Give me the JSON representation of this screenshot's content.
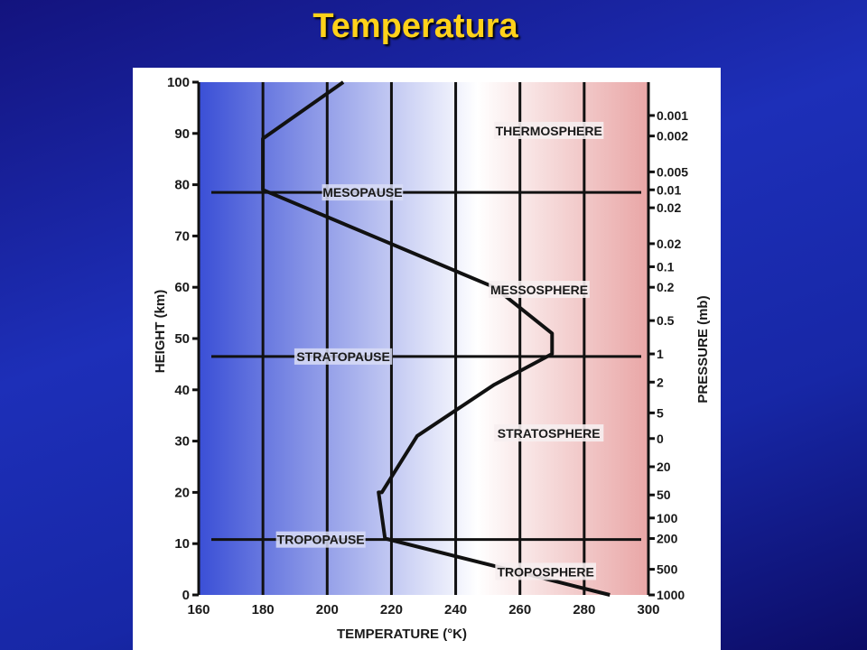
{
  "slide": {
    "title": "Temperatura"
  },
  "chart_data": {
    "type": "line",
    "xlabel": "TEMPERATURE (°K)",
    "ylabel": "HEIGHT (km)",
    "y2label": "PRESSURE (mb)",
    "xlim": [
      160,
      300
    ],
    "ylim": [
      0,
      100
    ],
    "x_ticks": [
      160,
      180,
      200,
      220,
      240,
      260,
      280,
      300
    ],
    "y_ticks": [
      0,
      10,
      20,
      30,
      40,
      50,
      60,
      70,
      80,
      90,
      100
    ],
    "grid": true,
    "series": [
      {
        "x": [
          288,
          218,
          216,
          217,
          228,
          252,
          270,
          270,
          252,
          180,
          180,
          205
        ],
        "y": [
          0,
          11,
          20,
          20,
          31,
          41,
          47,
          51,
          60,
          79,
          89,
          100
        ]
      }
    ],
    "pressure_ticks": [
      {
        "label": "0.001",
        "height": 93.5
      },
      {
        "label": "0.002",
        "height": 89.5
      },
      {
        "label": "0.005",
        "height": 82.5
      },
      {
        "label": "0.01",
        "height": 79
      },
      {
        "label": "0.02",
        "height": 75.5
      },
      {
        "label": "0.02",
        "height": 68.5
      },
      {
        "label": "0.1",
        "height": 64
      },
      {
        "label": "0.2",
        "height": 60
      },
      {
        "label": "0.5",
        "height": 53.5
      },
      {
        "label": "1",
        "height": 47
      },
      {
        "label": "2",
        "height": 41.5
      },
      {
        "label": "5",
        "height": 35.5
      },
      {
        "label": "0",
        "height": 30.5
      },
      {
        "label": "20",
        "height": 25
      },
      {
        "label": "50",
        "height": 19.5
      },
      {
        "label": "100",
        "height": 15
      },
      {
        "label": "200",
        "height": 11
      },
      {
        "label": "500",
        "height": 5
      },
      {
        "label": "1000",
        "height": 0
      }
    ],
    "boundaries": [
      {
        "label": "MESOPAUSE",
        "height": 78.5,
        "label_x": 211
      },
      {
        "label": "STRATOPAUSE",
        "height": 46.5,
        "label_x": 205
      },
      {
        "label": "TROPOPAUSE",
        "height": 10.8,
        "label_x": 198
      }
    ],
    "layer_labels": [
      {
        "label": "THERMOSPHERE",
        "height": 90.5,
        "x": 269
      },
      {
        "label": "MESSOSPHERE",
        "height": 59.5,
        "x": 266
      },
      {
        "label": "STRATOSPHERE",
        "height": 31.5,
        "x": 269
      },
      {
        "label": "TROPOSPHERE",
        "height": 4.5,
        "x": 268
      }
    ],
    "colors": {
      "cold": "#3a4fd6",
      "mid": "#ffffff",
      "warm": "#e9a6a6",
      "line": "#111111"
    }
  }
}
